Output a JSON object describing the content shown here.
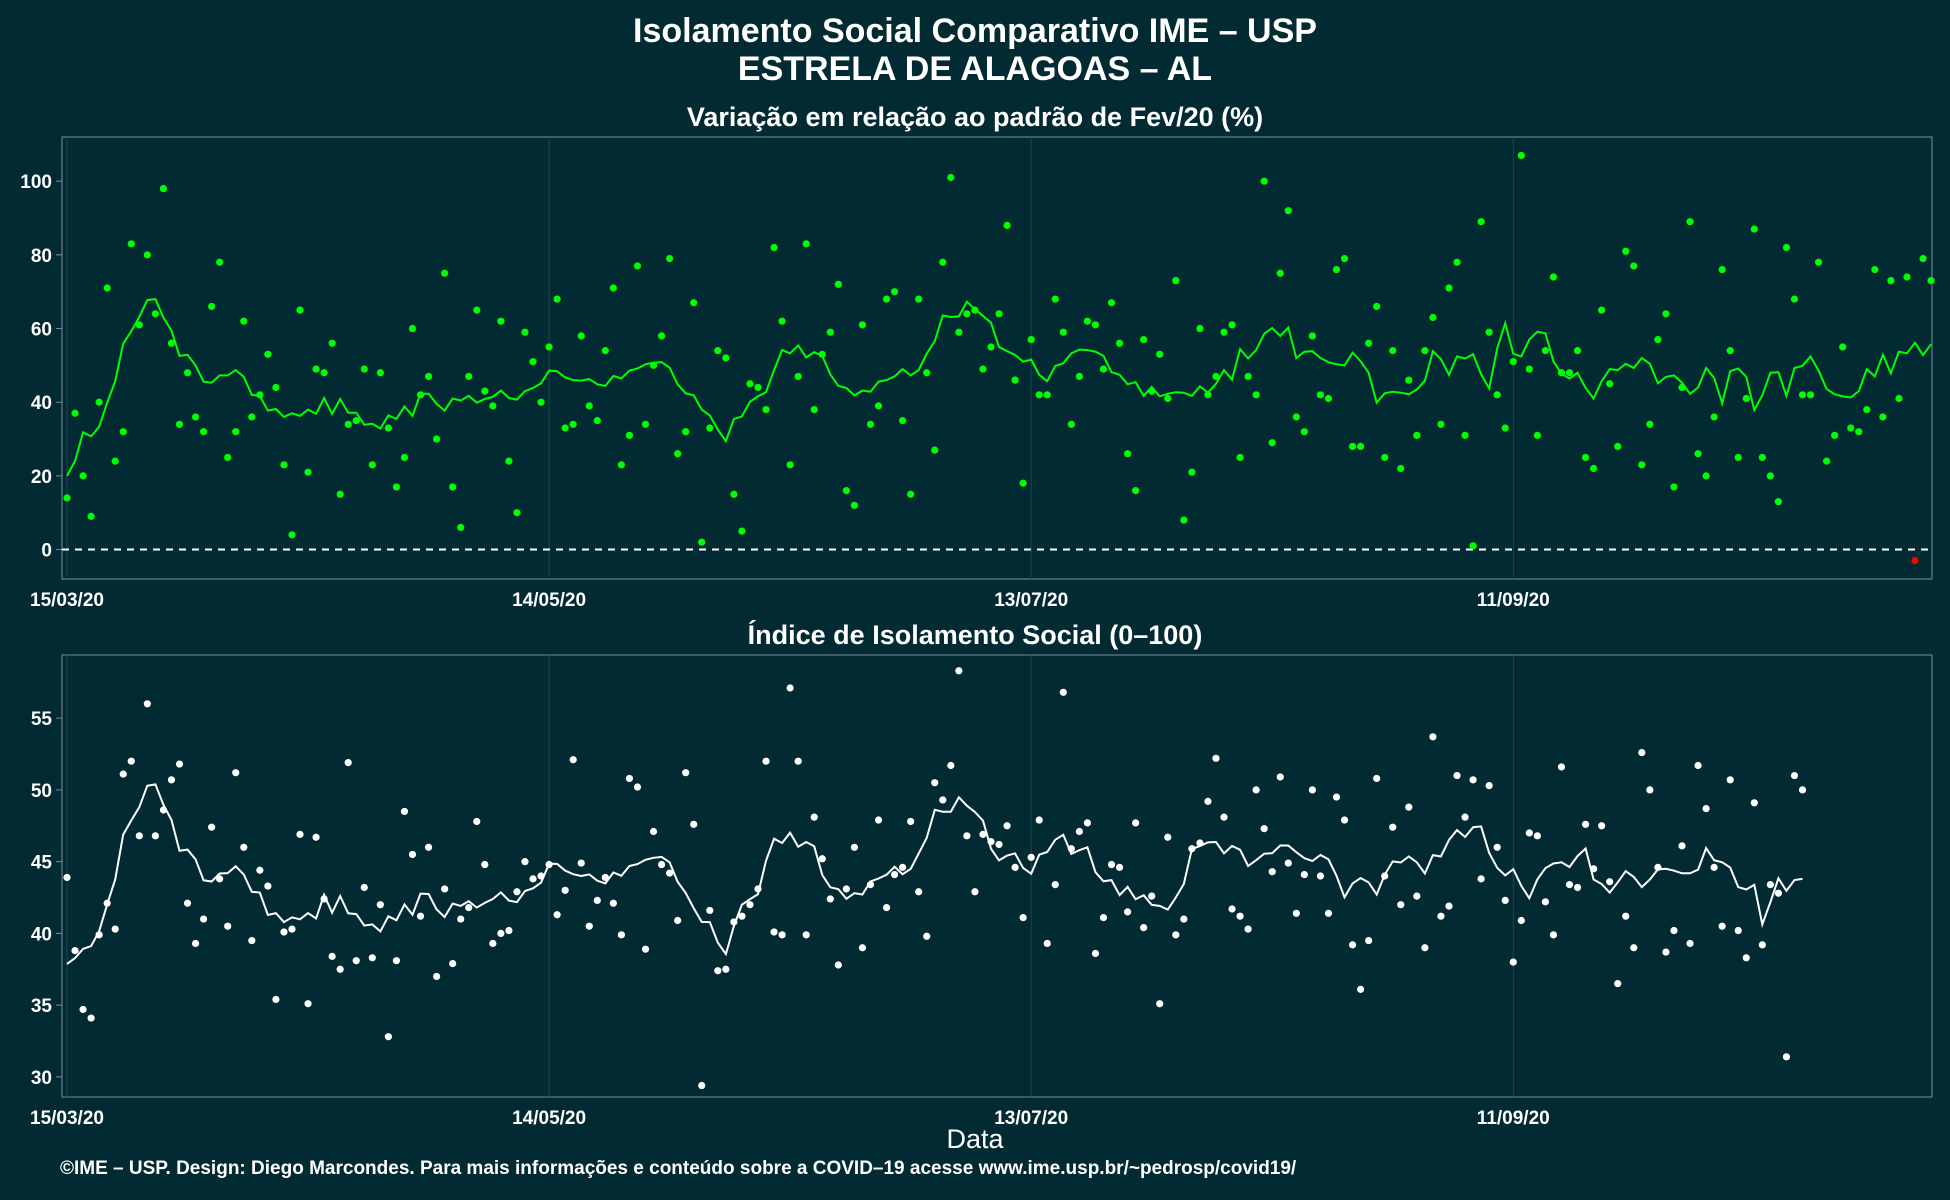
{
  "title_line1": "Isolamento Social Comparativo IME – USP",
  "title_line2": "ESTRELA DE ALAGOAS – AL",
  "caption": "©IME – USP. Design: Diego Marcondes. Para mais informações e conteúdo sobre a COVID–19 acesse www.ime.usp.br/~pedrosp/covid19/",
  "xlabel": "Data",
  "colors": {
    "background": "#022a33",
    "green": "#00ff00",
    "white": "#ffffff",
    "negative": "#ff0000"
  },
  "chart_data": [
    {
      "type": "scatter",
      "subtitle": "Variação em relação ao padrão de Fev/20 (%)",
      "x_tick_labels": [
        "15/03/20",
        "14/05/20",
        "13/07/20",
        "11/09/20"
      ],
      "x_tick_days": [
        0,
        60,
        120,
        180
      ],
      "ylim": [
        -8,
        112
      ],
      "y_ticks": [
        0,
        20,
        40,
        60,
        80,
        100
      ],
      "reference_line": 0,
      "point_color": "#00ff00",
      "line_color": "#00ff00",
      "negative_color": "#ff0000",
      "start_date": "2020-03-15",
      "points": [
        14,
        37,
        20,
        9,
        40,
        71,
        24,
        32,
        83,
        61,
        80,
        64,
        98,
        56,
        34,
        48,
        36,
        32,
        66,
        78,
        25,
        32,
        62,
        36,
        42,
        53,
        44,
        23,
        4,
        65,
        21,
        49,
        48,
        56,
        15,
        34,
        35,
        49,
        23,
        48,
        33,
        17,
        25,
        60,
        42,
        47,
        30,
        75,
        17,
        6,
        47,
        65,
        43,
        39,
        62,
        24,
        10,
        59,
        51,
        40,
        55,
        68,
        33,
        34,
        58,
        39,
        35,
        54,
        71,
        23,
        31,
        77,
        34,
        50,
        58,
        79,
        26,
        32,
        67,
        2,
        33,
        54,
        52,
        15,
        5,
        45,
        44,
        38,
        82,
        62,
        23,
        47,
        83,
        38,
        53,
        59,
        72,
        16,
        12,
        61,
        34,
        39,
        68,
        70,
        35,
        15,
        68,
        48,
        27,
        78,
        101,
        59,
        64,
        65,
        49,
        55,
        64,
        88,
        46,
        18,
        57,
        42,
        42,
        68,
        59,
        34,
        47,
        62,
        61,
        49,
        67,
        56,
        26,
        16,
        57,
        43,
        53,
        41,
        73,
        8,
        21,
        60,
        42,
        47,
        59,
        61,
        25,
        47,
        42,
        100,
        29,
        75,
        92,
        36,
        32,
        58,
        42,
        41,
        76,
        79,
        28,
        28,
        56,
        66,
        25,
        54,
        22,
        46,
        31,
        54,
        63,
        34,
        71,
        78,
        31,
        1,
        89,
        59,
        42,
        33,
        51,
        107,
        49,
        31,
        54,
        74,
        48,
        48,
        54,
        25,
        22,
        65,
        45,
        28,
        81,
        77,
        23,
        34,
        57,
        64,
        17,
        44,
        89,
        26,
        20,
        36,
        76,
        54,
        25,
        41,
        87,
        25,
        20,
        13,
        82,
        68,
        42,
        42,
        78,
        24,
        31,
        55,
        33,
        32,
        38,
        76,
        36,
        73,
        41,
        74,
        -3,
        79,
        73
      ]
    },
    {
      "type": "scatter",
      "subtitle": "Índice de Isolamento Social (0–100)",
      "x_tick_labels": [
        "15/03/20",
        "14/05/20",
        "13/07/20",
        "11/09/20"
      ],
      "x_tick_days": [
        0,
        60,
        120,
        180
      ],
      "ylim": [
        28.6,
        59.4
      ],
      "y_ticks": [
        30,
        35,
        40,
        45,
        50,
        55
      ],
      "point_color": "#ffffff",
      "line_color": "#ffffff",
      "start_date": "2020-03-15",
      "points": [
        43.9,
        38.8,
        34.7,
        34.1,
        39.9,
        42.1,
        40.3,
        51.1,
        52.0,
        46.8,
        56.0,
        46.8,
        48.6,
        50.7,
        51.8,
        42.1,
        39.3,
        41.0,
        47.4,
        43.8,
        40.5,
        51.2,
        46.0,
        39.5,
        44.4,
        43.3,
        35.4,
        40.1,
        40.3,
        46.9,
        35.1,
        46.7,
        42.4,
        38.4,
        37.5,
        51.9,
        38.1,
        43.2,
        38.3,
        42.0,
        32.8,
        38.1,
        48.5,
        45.5,
        41.2,
        46.0,
        37.0,
        43.1,
        37.9,
        41.0,
        41.8,
        47.8,
        44.8,
        39.3,
        40.0,
        40.2,
        42.9,
        45.0,
        43.8,
        44.0,
        44.8,
        41.3,
        43.0,
        52.1,
        44.9,
        40.5,
        42.3,
        43.9,
        42.1,
        39.9,
        50.8,
        50.2,
        38.9,
        47.1,
        44.8,
        44.2,
        40.9,
        51.2,
        47.6,
        29.4,
        41.6,
        37.4,
        37.5,
        40.8,
        41.2,
        42.0,
        43.1,
        52.0,
        40.1,
        39.9,
        57.1,
        52.0,
        39.9,
        48.1,
        45.2,
        42.4,
        37.8,
        43.1,
        46.0,
        39.0,
        43.4,
        47.9,
        41.8,
        44.1,
        44.6,
        47.8,
        42.9,
        39.8,
        50.5,
        49.3,
        51.7,
        58.3,
        46.8,
        42.9,
        46.9,
        46.4,
        46.2,
        47.5,
        44.6,
        41.1,
        45.3,
        47.9,
        39.3,
        43.4,
        56.8,
        45.9,
        47.1,
        47.7,
        38.6,
        41.1,
        44.8,
        44.6,
        41.5,
        47.7,
        40.4,
        42.6,
        35.1,
        46.7,
        39.9,
        41.0,
        45.9,
        46.3,
        49.2,
        52.2,
        48.1,
        41.7,
        41.2,
        40.3,
        50.0,
        47.3,
        44.3,
        50.9,
        44.9,
        41.4,
        44.1,
        50.0,
        44.0,
        41.4,
        49.5,
        47.9,
        39.2,
        36.1,
        39.5,
        50.8,
        44.0,
        47.4,
        42.0,
        48.8,
        42.6,
        39.0,
        53.7,
        41.2,
        41.9,
        51.0,
        48.1,
        50.7,
        43.8,
        50.3,
        46.0,
        42.3,
        38.0,
        40.9,
        47.0,
        46.8,
        42.2,
        39.9,
        51.6,
        43.4,
        43.2,
        47.6,
        44.5,
        47.5,
        43.6,
        36.5,
        41.2,
        39.0,
        52.6,
        50.0,
        44.6,
        38.7,
        40.2,
        46.1,
        39.3,
        51.7,
        48.7,
        44.6,
        40.5,
        50.7,
        40.2,
        38.3,
        49.1,
        39.2,
        43.4,
        42.8,
        31.4,
        51.0,
        50.0
      ]
    }
  ]
}
